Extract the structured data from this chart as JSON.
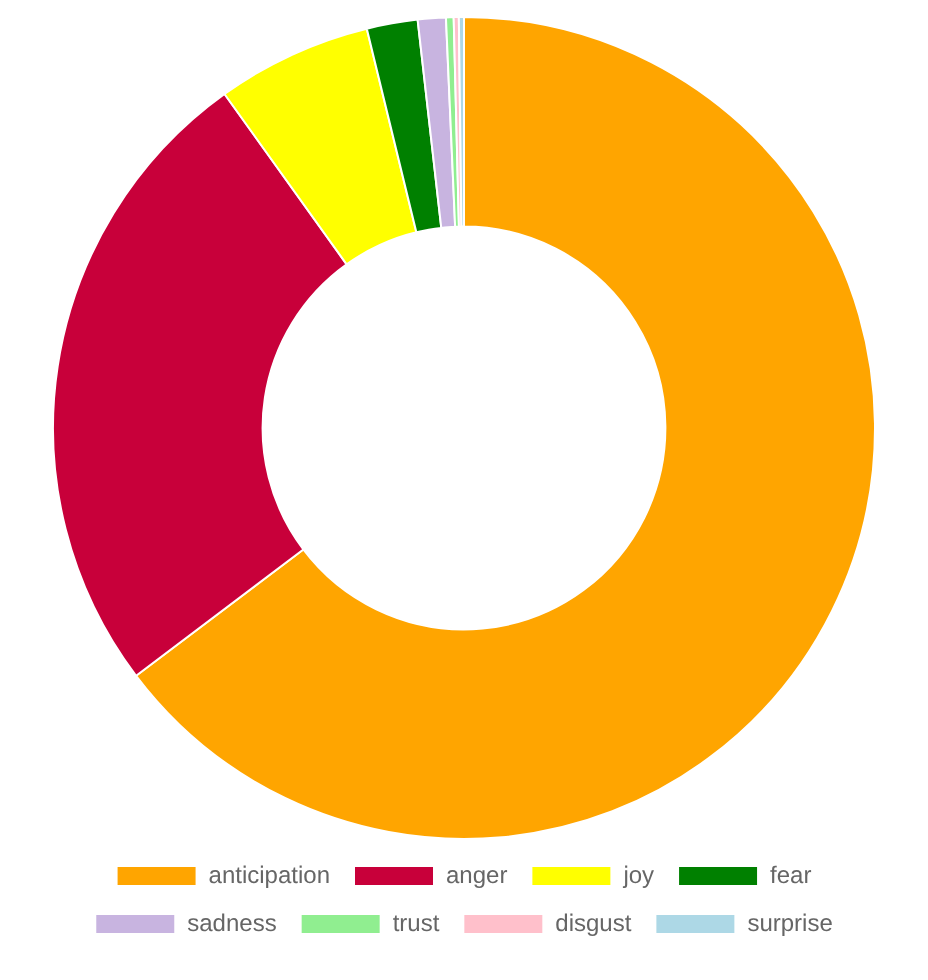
{
  "chart_data": {
    "type": "donut",
    "categories": [
      "anticipation",
      "anger",
      "joy",
      "fear",
      "sadness",
      "trust",
      "disgust",
      "surprise"
    ],
    "values": [
      64.7,
      25.4,
      6.1,
      2.0,
      1.1,
      0.3,
      0.2,
      0.2
    ],
    "colors": [
      "#ffa500",
      "#c8003a",
      "#ffff00",
      "#008000",
      "#c8b4e0",
      "#90ee90",
      "#ffc0cb",
      "#add8e6"
    ],
    "legend": "bottom"
  }
}
